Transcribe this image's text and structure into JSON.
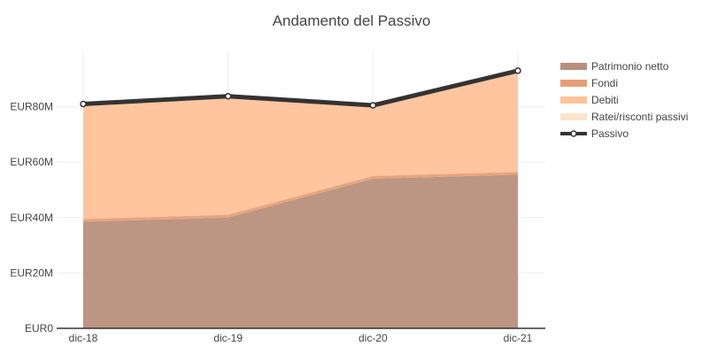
{
  "chart_data": {
    "type": "area",
    "title": "Andamento del Passivo",
    "categories": [
      "dic-18",
      "dic-19",
      "dic-20",
      "dic-21"
    ],
    "y_ticks": [
      {
        "value": 0,
        "label": "EUR0"
      },
      {
        "value": 20,
        "label": "EUR20M"
      },
      {
        "value": 40,
        "label": "EUR40M"
      },
      {
        "value": 60,
        "label": "EUR60M"
      },
      {
        "value": 80,
        "label": "EUR80M"
      }
    ],
    "y_unit": "EUR M",
    "ylim": [
      0,
      100
    ],
    "stacked": true,
    "grid": true,
    "legend_position": "right",
    "series": [
      {
        "name": "Patrimonio netto",
        "type": "area",
        "color": "#b88f7c",
        "values": [
          38.5,
          40.0,
          54.0,
          55.5
        ]
      },
      {
        "name": "Fondi",
        "type": "area",
        "color": "#e69f75",
        "values": [
          1.0,
          1.0,
          1.0,
          1.0
        ]
      },
      {
        "name": "Debiti",
        "type": "area",
        "color": "#ffc299",
        "values": [
          41.0,
          42.5,
          25.0,
          36.0
        ]
      },
      {
        "name": "Ratei/risconti passivi",
        "type": "area",
        "color": "#fde3cc",
        "values": [
          0.1,
          0.1,
          0.1,
          0.1
        ]
      },
      {
        "name": "Passivo",
        "type": "line",
        "color": "#333333",
        "values": [
          81.0,
          83.8,
          80.5,
          93.0
        ]
      }
    ]
  }
}
